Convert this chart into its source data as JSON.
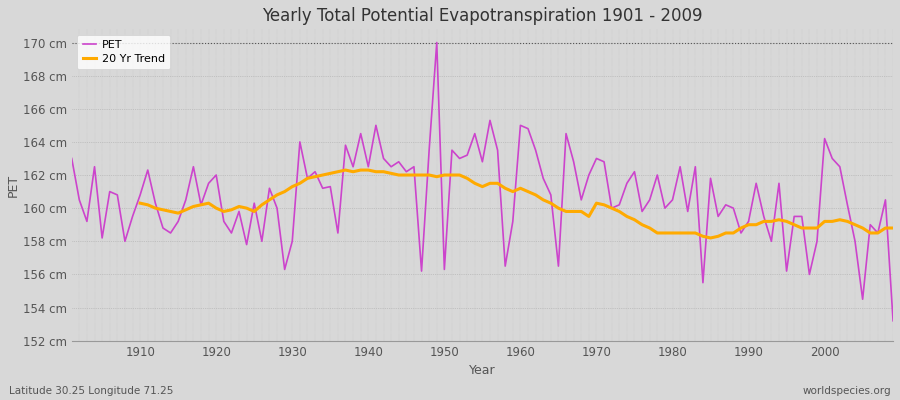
{
  "title": "Yearly Total Potential Evapotranspiration 1901 - 2009",
  "xlabel": "Year",
  "ylabel": "PET",
  "subtitle_left": "Latitude 30.25 Longitude 71.25",
  "subtitle_right": "worldspecies.org",
  "pet_color": "#cc44cc",
  "trend_color": "#ffaa00",
  "fig_bg_color": "#d8d8d8",
  "plot_bg_color": "#d8d8d8",
  "ylim": [
    152,
    170.8
  ],
  "yticks": [
    152,
    154,
    156,
    158,
    160,
    162,
    164,
    166,
    168,
    170
  ],
  "ytick_labels": [
    "152 cm",
    "154 cm",
    "156 cm",
    "158 cm",
    "160 cm",
    "162 cm",
    "164 cm",
    "166 cm",
    "168 cm",
    "170 cm"
  ],
  "years": [
    1901,
    1902,
    1903,
    1904,
    1905,
    1906,
    1907,
    1908,
    1909,
    1910,
    1911,
    1912,
    1913,
    1914,
    1915,
    1916,
    1917,
    1918,
    1919,
    1920,
    1921,
    1922,
    1923,
    1924,
    1925,
    1926,
    1927,
    1928,
    1929,
    1930,
    1931,
    1932,
    1933,
    1934,
    1935,
    1936,
    1937,
    1938,
    1939,
    1940,
    1941,
    1942,
    1943,
    1944,
    1945,
    1946,
    1947,
    1948,
    1949,
    1950,
    1951,
    1952,
    1953,
    1954,
    1955,
    1956,
    1957,
    1958,
    1959,
    1960,
    1961,
    1962,
    1963,
    1964,
    1965,
    1966,
    1967,
    1968,
    1969,
    1970,
    1971,
    1972,
    1973,
    1974,
    1975,
    1976,
    1977,
    1978,
    1979,
    1980,
    1981,
    1982,
    1983,
    1984,
    1985,
    1986,
    1987,
    1988,
    1989,
    1990,
    1991,
    1992,
    1993,
    1994,
    1995,
    1996,
    1997,
    1998,
    1999,
    2000,
    2001,
    2002,
    2003,
    2004,
    2005,
    2006,
    2007,
    2008,
    2009
  ],
  "pet_values": [
    163.0,
    160.5,
    159.2,
    162.5,
    158.2,
    161.0,
    160.8,
    158.0,
    159.5,
    160.8,
    162.3,
    160.3,
    158.8,
    158.5,
    159.2,
    160.5,
    162.5,
    160.2,
    161.5,
    162.0,
    159.2,
    158.5,
    159.8,
    157.8,
    160.3,
    158.0,
    161.2,
    160.0,
    156.3,
    158.0,
    164.0,
    161.8,
    162.2,
    161.2,
    161.3,
    158.5,
    163.8,
    162.5,
    164.5,
    162.5,
    165.0,
    163.0,
    162.5,
    162.8,
    162.2,
    162.5,
    156.2,
    163.5,
    170.0,
    156.3,
    163.5,
    163.0,
    163.2,
    164.5,
    162.8,
    165.3,
    163.5,
    156.5,
    159.2,
    165.0,
    164.8,
    163.5,
    161.8,
    160.8,
    156.5,
    164.5,
    162.8,
    160.5,
    162.0,
    163.0,
    162.8,
    160.0,
    160.2,
    161.5,
    162.2,
    159.8,
    160.5,
    162.0,
    160.0,
    160.5,
    162.5,
    159.8,
    162.5,
    155.5,
    161.8,
    159.5,
    160.2,
    160.0,
    158.5,
    159.2,
    161.5,
    159.5,
    158.0,
    161.5,
    156.2,
    159.5,
    159.5,
    156.0,
    158.0,
    164.2,
    163.0,
    162.5,
    160.2,
    158.0,
    154.5,
    159.0,
    158.5,
    160.5,
    153.2
  ],
  "trend_values": [
    null,
    null,
    null,
    null,
    null,
    null,
    null,
    null,
    null,
    160.3,
    160.2,
    160.0,
    159.9,
    159.8,
    159.7,
    159.9,
    160.1,
    160.2,
    160.3,
    160.0,
    159.8,
    159.9,
    160.1,
    160.0,
    159.8,
    160.2,
    160.5,
    160.8,
    161.0,
    161.3,
    161.5,
    161.8,
    161.9,
    162.0,
    162.1,
    162.2,
    162.3,
    162.2,
    162.3,
    162.3,
    162.2,
    162.2,
    162.1,
    162.0,
    162.0,
    162.0,
    162.0,
    162.0,
    161.9,
    162.0,
    162.0,
    162.0,
    161.8,
    161.5,
    161.3,
    161.5,
    161.5,
    161.2,
    161.0,
    161.2,
    161.0,
    160.8,
    160.5,
    160.3,
    160.0,
    159.8,
    159.8,
    159.8,
    159.5,
    160.3,
    160.2,
    160.0,
    159.8,
    159.5,
    159.3,
    159.0,
    158.8,
    158.5,
    158.5,
    158.5,
    158.5,
    158.5,
    158.5,
    158.3,
    158.2,
    158.3,
    158.5,
    158.5,
    158.8,
    159.0,
    159.0,
    159.2,
    159.2,
    159.3,
    159.2,
    159.0,
    158.8,
    158.8,
    158.8,
    159.2,
    159.2,
    159.3,
    159.2,
    159.0,
    158.8,
    158.5,
    158.5,
    158.8,
    158.8
  ]
}
